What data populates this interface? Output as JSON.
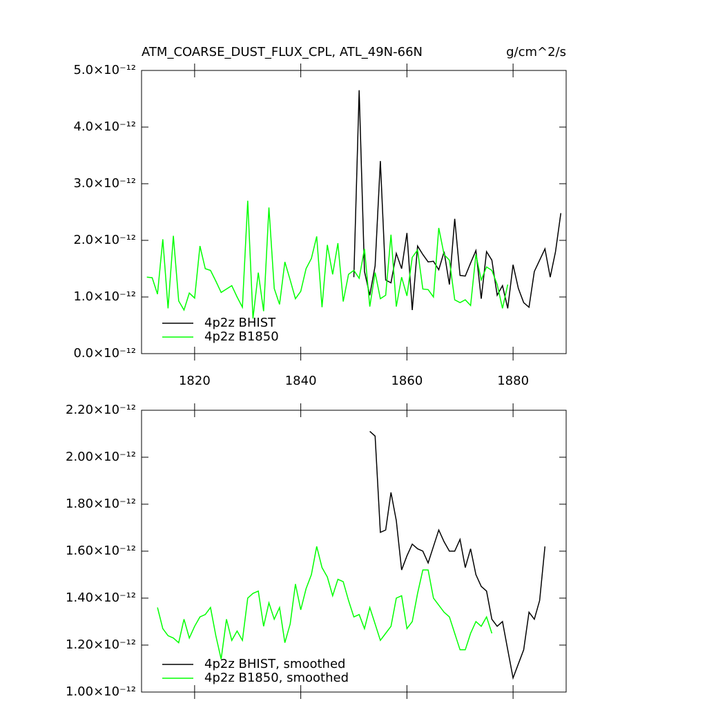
{
  "chart_data": [
    {
      "type": "line",
      "title": "ATM_COARSE_DUST_FLUX_CPL, ATL_49N-66N",
      "units": "g/cm^2/s",
      "xlim": [
        1810,
        1890
      ],
      "xticks": [
        1820,
        1840,
        1860,
        1880
      ],
      "ylim": [
        0,
        5e-12
      ],
      "yticks": [
        {
          "value": 0,
          "label": "0.0×10⁻¹²"
        },
        {
          "value": 1e-12,
          "label": "1.0×10⁻¹²"
        },
        {
          "value": 2e-12,
          "label": "2.0×10⁻¹²"
        },
        {
          "value": 3e-12,
          "label": "3.0×10⁻¹²"
        },
        {
          "value": 4e-12,
          "label": "4.0×10⁻¹²"
        },
        {
          "value": 5e-12,
          "label": "5.0×10⁻¹²"
        }
      ],
      "series": [
        {
          "name": "4p2z BHIST",
          "color": "#000000",
          "x": [
            1850,
            1851,
            1852,
            1853,
            1854,
            1855,
            1856,
            1857,
            1858,
            1859,
            1860,
            1861,
            1862,
            1863,
            1864,
            1865,
            1866,
            1867,
            1868,
            1869,
            1870,
            1871,
            1872,
            1873,
            1874,
            1875,
            1876,
            1877,
            1878,
            1879,
            1880,
            1881,
            1882,
            1883,
            1884,
            1885,
            1886,
            1887,
            1888,
            1889
          ],
          "values": [
            1.35e-12,
            4.65e-12,
            1.45e-12,
            1.03e-12,
            1.55e-12,
            3.4e-12,
            1.3e-12,
            1.25e-12,
            1.77e-12,
            1.5e-12,
            2.13e-12,
            7.7e-13,
            1.9e-12,
            1.75e-12,
            1.62e-12,
            1.63e-12,
            1.48e-12,
            1.8e-12,
            1.22e-12,
            2.38e-12,
            1.38e-12,
            1.37e-12,
            1.6e-12,
            1.82e-12,
            9.7e-13,
            1.8e-12,
            1.65e-12,
            1.03e-12,
            1.2e-12,
            8e-13,
            1.57e-12,
            1.15e-12,
            9e-13,
            8.2e-13,
            1.45e-12,
            1.65e-12,
            1.85e-12,
            1.35e-12,
            1.8e-12,
            2.48e-12
          ]
        },
        {
          "name": "4p2z B1850",
          "color": "#00ff00",
          "x": [
            1811,
            1812,
            1813,
            1814,
            1815,
            1816,
            1817,
            1818,
            1819,
            1820,
            1821,
            1822,
            1823,
            1824,
            1825,
            1826,
            1827,
            1828,
            1829,
            1830,
            1831,
            1832,
            1833,
            1834,
            1835,
            1836,
            1837,
            1838,
            1839,
            1840,
            1841,
            1842,
            1843,
            1844,
            1845,
            1846,
            1847,
            1848,
            1849,
            1850,
            1851,
            1852,
            1853,
            1854,
            1855,
            1856,
            1857,
            1858,
            1859,
            1860,
            1861,
            1862,
            1863,
            1864,
            1865,
            1866,
            1867,
            1868,
            1869,
            1870,
            1871,
            1872,
            1873,
            1874,
            1875,
            1876,
            1877,
            1878,
            1879
          ],
          "values": [
            1.35e-12,
            1.34e-12,
            1.05e-12,
            2.02e-12,
            8e-13,
            2.08e-12,
            9.3e-13,
            7.7e-13,
            1.07e-12,
            9.8e-13,
            1.9e-12,
            1.5e-12,
            1.47e-12,
            1.28e-12,
            1.08e-12,
            1.14e-12,
            1.2e-12,
            1e-12,
            8.2e-13,
            2.7e-12,
            6.2e-13,
            1.43e-12,
            7.5e-13,
            2.58e-12,
            1.15e-12,
            8.7e-13,
            1.62e-12,
            1.3e-12,
            9.7e-13,
            1.1e-12,
            1.5e-12,
            1.68e-12,
            2.07e-12,
            8.2e-13,
            1.92e-12,
            1.4e-12,
            1.95e-12,
            9.2e-13,
            1.4e-12,
            1.47e-12,
            1.33e-12,
            1.85e-12,
            8.3e-13,
            1.43e-12,
            9.7e-13,
            1.03e-12,
            2.1e-12,
            8.3e-13,
            1.35e-12,
            1.02e-12,
            1.7e-12,
            1.83e-12,
            1.14e-12,
            1.13e-12,
            1e-12,
            2.22e-12,
            1.75e-12,
            1.65e-12,
            9.5e-13,
            9e-13,
            9.5e-13,
            8.5e-13,
            1.75e-12,
            1.3e-12,
            1.53e-12,
            1.47e-12,
            1.22e-12,
            8e-13,
            1.22e-12
          ]
        }
      ]
    },
    {
      "type": "line",
      "xlim": [
        1810,
        1890
      ],
      "ylim": [
        1e-12,
        2.2e-12
      ],
      "yticks": [
        {
          "value": 1e-12,
          "label": "1.00×10⁻¹²"
        },
        {
          "value": 1.2e-12,
          "label": "1.20×10⁻¹²"
        },
        {
          "value": 1.4e-12,
          "label": "1.40×10⁻¹²"
        },
        {
          "value": 1.6e-12,
          "label": "1.60×10⁻¹²"
        },
        {
          "value": 1.8e-12,
          "label": "1.80×10⁻¹²"
        },
        {
          "value": 2e-12,
          "label": "2.00×10⁻¹²"
        },
        {
          "value": 2.2e-12,
          "label": "2.20×10⁻¹²"
        }
      ],
      "series": [
        {
          "name": "4p2z BHIST, smoothed",
          "color": "#000000",
          "x": [
            1853,
            1854,
            1855,
            1856,
            1857,
            1858,
            1859,
            1860,
            1861,
            1862,
            1863,
            1864,
            1865,
            1866,
            1867,
            1868,
            1869,
            1870,
            1871,
            1872,
            1873,
            1874,
            1875,
            1876,
            1877,
            1878,
            1879,
            1880,
            1881,
            1882,
            1883,
            1884,
            1885,
            1886
          ],
          "values": [
            2.11e-12,
            2.09e-12,
            1.68e-12,
            1.69e-12,
            1.85e-12,
            1.73e-12,
            1.52e-12,
            1.58e-12,
            1.63e-12,
            1.61e-12,
            1.6e-12,
            1.55e-12,
            1.62e-12,
            1.69e-12,
            1.64e-12,
            1.6e-12,
            1.6e-12,
            1.65e-12,
            1.53e-12,
            1.61e-12,
            1.5e-12,
            1.45e-12,
            1.43e-12,
            1.31e-12,
            1.28e-12,
            1.3e-12,
            1.18e-12,
            1.06e-12,
            1.12e-12,
            1.18e-12,
            1.34e-12,
            1.31e-12,
            1.39e-12,
            1.62e-12
          ]
        },
        {
          "name": "4p2z B1850, smoothed",
          "color": "#00ff00",
          "x": [
            1813,
            1814,
            1815,
            1816,
            1817,
            1818,
            1819,
            1820,
            1821,
            1822,
            1823,
            1824,
            1825,
            1826,
            1827,
            1828,
            1829,
            1830,
            1831,
            1832,
            1833,
            1834,
            1835,
            1836,
            1837,
            1838,
            1839,
            1840,
            1841,
            1842,
            1843,
            1844,
            1845,
            1846,
            1847,
            1848,
            1849,
            1850,
            1851,
            1852,
            1853,
            1854,
            1855,
            1856,
            1857,
            1858,
            1859,
            1860,
            1861,
            1862,
            1863,
            1864,
            1865,
            1866,
            1867,
            1868,
            1869,
            1870,
            1871,
            1872,
            1873,
            1874,
            1875,
            1876
          ],
          "values": [
            1.36e-12,
            1.27e-12,
            1.24e-12,
            1.23e-12,
            1.21e-12,
            1.31e-12,
            1.23e-12,
            1.28e-12,
            1.32e-12,
            1.33e-12,
            1.36e-12,
            1.24e-12,
            1.14e-12,
            1.31e-12,
            1.22e-12,
            1.26e-12,
            1.22e-12,
            1.4e-12,
            1.42e-12,
            1.43e-12,
            1.28e-12,
            1.38e-12,
            1.31e-12,
            1.36e-12,
            1.21e-12,
            1.29e-12,
            1.46e-12,
            1.35e-12,
            1.44e-12,
            1.5e-12,
            1.62e-12,
            1.53e-12,
            1.49e-12,
            1.41e-12,
            1.48e-12,
            1.47e-12,
            1.39e-12,
            1.32e-12,
            1.33e-12,
            1.27e-12,
            1.36e-12,
            1.29e-12,
            1.22e-12,
            1.25e-12,
            1.28e-12,
            1.4e-12,
            1.41e-12,
            1.27e-12,
            1.3e-12,
            1.42e-12,
            1.52e-12,
            1.52e-12,
            1.4e-12,
            1.37e-12,
            1.34e-12,
            1.32e-12,
            1.25e-12,
            1.18e-12,
            1.18e-12,
            1.25e-12,
            1.3e-12,
            1.28e-12,
            1.32e-12,
            1.25e-12
          ]
        }
      ]
    }
  ]
}
